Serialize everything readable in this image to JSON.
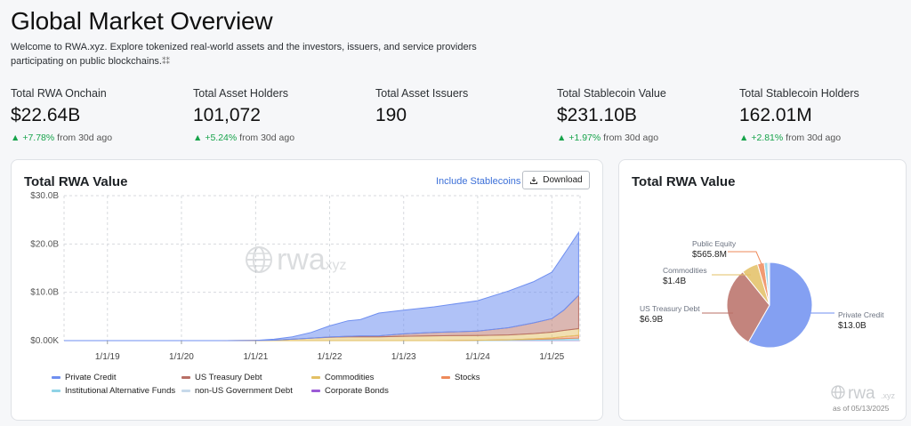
{
  "header": {
    "title": "Global Market Overview",
    "intro": "Welcome to RWA.xyz. Explore tokenized real-world assets and the investors, issuers, and service providers participating on public blockchains.",
    "intro_glyph": "⁑⁑"
  },
  "stats": [
    {
      "label": "Total RWA Onchain",
      "value": "$22.64B",
      "change": "+7.78%",
      "suffix": "from 30d ago"
    },
    {
      "label": "Total Asset Holders",
      "value": "101,072",
      "change": "+5.24%",
      "suffix": "from 30d ago"
    },
    {
      "label": "Total Asset Issuers",
      "value": "190",
      "change": "",
      "suffix": ""
    },
    {
      "label": "Total Stablecoin Value",
      "value": "$231.10B",
      "change": "+1.97%",
      "suffix": "from 30d ago"
    },
    {
      "label": "Total Stablecoin Holders",
      "value": "162.01M",
      "change": "+2.81%",
      "suffix": "from 30d ago"
    }
  ],
  "area_card": {
    "title": "Total RWA Value",
    "include_stablecoins": "Include Stablecoins",
    "download_label": "Download",
    "watermark": {
      "main": "rwa",
      "suffix": ".xyz"
    }
  },
  "pie_card": {
    "title": "Total RWA Value",
    "watermark": {
      "main": "rwa",
      "suffix": ".xyz"
    },
    "as_of": "as of 05/13/2025"
  },
  "colors": {
    "private_credit": "#6f8ff0",
    "us_treasury": "#b86f66",
    "commodities": "#e3c064",
    "stocks": "#ee8a5a",
    "institutional_alt": "#8fd3e6",
    "non_us_gov": "#c7d9ea",
    "corporate_bonds": "#9b5bd6",
    "up": "#16a34a"
  },
  "chart_data": [
    {
      "type": "area",
      "stacked": true,
      "title": "Total RWA Value",
      "ylim": [
        0,
        30
      ],
      "yunit": "B",
      "y_ticks": [
        "$0.00K",
        "$10.0B",
        "$20.0B",
        "$30.0B"
      ],
      "x_ticks": [
        "1/1/19",
        "1/1/20",
        "1/1/21",
        "1/1/22",
        "1/1/23",
        "1/1/24",
        "1/1/25"
      ],
      "grid": true,
      "legend_position": "bottom",
      "x": [
        "2018-06-01",
        "2019-01-01",
        "2019-07-01",
        "2020-01-01",
        "2020-07-01",
        "2021-01-01",
        "2021-04-01",
        "2021-07-01",
        "2021-10-01",
        "2022-01-01",
        "2022-04-01",
        "2022-06-01",
        "2022-09-01",
        "2023-01-01",
        "2023-06-01",
        "2024-01-01",
        "2024-06-01",
        "2024-10-01",
        "2025-01-01",
        "2025-03-01",
        "2025-05-13"
      ],
      "series": [
        {
          "name": "Private Credit",
          "values": [
            0,
            0,
            0,
            0,
            0,
            0.03,
            0.2,
            0.5,
            1.2,
            2.3,
            3.2,
            3.4,
            4.7,
            4.9,
            5.3,
            6.3,
            7.6,
            8.5,
            9.6,
            11.5,
            13.0
          ]
        },
        {
          "name": "US Treasury Debt",
          "values": [
            0,
            0,
            0,
            0,
            0,
            0,
            0,
            0,
            0,
            0.05,
            0.1,
            0.15,
            0.2,
            0.5,
            0.7,
            0.9,
            1.5,
            2.2,
            2.8,
            4.2,
            6.9
          ]
        },
        {
          "name": "Commodities",
          "values": [
            0,
            0,
            0,
            0,
            0,
            0.03,
            0.1,
            0.3,
            0.5,
            0.7,
            0.8,
            0.8,
            0.8,
            0.9,
            1.0,
            1.0,
            1.0,
            1.1,
            1.2,
            1.3,
            1.4
          ]
        },
        {
          "name": "Stocks",
          "values": [
            0,
            0,
            0,
            0,
            0,
            0,
            0,
            0,
            0,
            0,
            0,
            0,
            0,
            0,
            0,
            0,
            0,
            0.1,
            0.2,
            0.4,
            0.57
          ]
        },
        {
          "name": "Institutional Alternative Funds",
          "values": [
            0,
            0,
            0,
            0,
            0,
            0,
            0,
            0,
            0,
            0,
            0,
            0,
            0,
            0,
            0,
            0.05,
            0.1,
            0.15,
            0.2,
            0.25,
            0.3
          ]
        },
        {
          "name": "non-US Government Debt",
          "values": [
            0,
            0,
            0,
            0,
            0,
            0,
            0,
            0,
            0,
            0,
            0,
            0,
            0,
            0,
            0,
            0.02,
            0.05,
            0.08,
            0.1,
            0.12,
            0.15
          ]
        },
        {
          "name": "Corporate Bonds",
          "values": [
            0,
            0,
            0,
            0,
            0,
            0,
            0,
            0,
            0,
            0,
            0,
            0,
            0,
            0,
            0,
            0,
            0.02,
            0.03,
            0.05,
            0.05,
            0.06
          ]
        }
      ]
    },
    {
      "type": "pie",
      "title": "Total RWA Value",
      "slices": [
        {
          "name": "Private Credit",
          "label": "$13.0B",
          "value": 13.0
        },
        {
          "name": "US Treasury Debt",
          "label": "$6.9B",
          "value": 6.9
        },
        {
          "name": "Commodities",
          "label": "$1.4B",
          "value": 1.4
        },
        {
          "name": "Public Equity",
          "label": "$565.8M",
          "value": 0.5658
        },
        {
          "name": "Institutional Alternative Funds",
          "label": "",
          "value": 0.3
        },
        {
          "name": "non-US Government Debt",
          "label": "",
          "value": 0.15
        }
      ]
    }
  ]
}
